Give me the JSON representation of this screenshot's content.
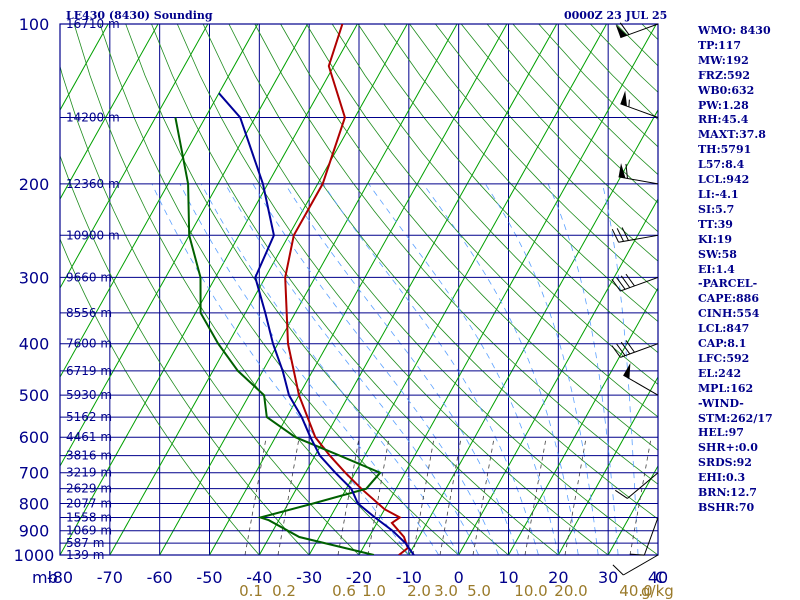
{
  "header": {
    "station": "LE430 (8430) Sounding",
    "time": "0000Z 23 JUL 25"
  },
  "indices": [
    "WMO: 8430",
    "TP:117",
    "MW:192",
    "FRZ:592",
    "WB0:632",
    "PW:1.28",
    "RH:45.4",
    "MAXT:37.8",
    "TH:5791",
    "L57:8.4",
    "LCL:942",
    "LI:-4.1",
    "SI:5.7",
    "TT:39",
    "KI:19",
    "SW:58",
    "EI:1.4",
    "-PARCEL-",
    "CAPE:886",
    "CINH:554",
    "LCL:847",
    "CAP:8.1",
    "LFC:592",
    "EL:242",
    "MPL:162",
    "-WIND-",
    "STM:262/17",
    "HEL:97",
    "SHR+:0.0",
    "SRDS:92",
    "EHI:0.3",
    "BRN:12.7",
    "BSHR:70"
  ],
  "chart_data": {
    "type": "skew-t",
    "y_unit_label": "mb",
    "x_unit_label": "C",
    "mixing_unit_label": "g/kg",
    "ylim": [
      100,
      1000
    ],
    "xlim": [
      -80,
      40
    ],
    "pressure_ticks": [
      100,
      200,
      300,
      400,
      500,
      600,
      700,
      800,
      900,
      1000
    ],
    "temperature_ticks": [
      -80,
      -70,
      -60,
      -50,
      -40,
      -30,
      -20,
      -10,
      0,
      10,
      20,
      30,
      40
    ],
    "mixing_ratio_ticks": [
      "0.1",
      "0.2",
      "0.6",
      "1.0",
      "2.0",
      "3.0",
      "5.0",
      "10.0",
      "20.0",
      "40.0"
    ],
    "height_labels": [
      {
        "p": 100,
        "label": "16710 m"
      },
      {
        "p": 150,
        "label": "14200 m"
      },
      {
        "p": 200,
        "label": "12360 m"
      },
      {
        "p": 250,
        "label": "10900 m"
      },
      {
        "p": 300,
        "label": "9660 m"
      },
      {
        "p": 350,
        "label": "8556 m"
      },
      {
        "p": 400,
        "label": "7600 m"
      },
      {
        "p": 450,
        "label": "6719 m"
      },
      {
        "p": 500,
        "label": "5930 m"
      },
      {
        "p": 550,
        "label": "5162 m"
      },
      {
        "p": 600,
        "label": "4461 m"
      },
      {
        "p": 650,
        "label": "3816 m"
      },
      {
        "p": 700,
        "label": "3219 m"
      },
      {
        "p": 750,
        "label": "2629 m"
      },
      {
        "p": 800,
        "label": "2077 m"
      },
      {
        "p": 850,
        "label": "1558 m"
      },
      {
        "p": 900,
        "label": "1069 m"
      },
      {
        "p": 950,
        "label": "587 m"
      },
      {
        "p": 1000,
        "label": "139 m"
      }
    ],
    "series": [
      {
        "key": "temperature",
        "color": "#b00000",
        "points": [
          [
            1000,
            -12
          ],
          [
            970,
            -11
          ],
          [
            925,
            -13
          ],
          [
            870,
            -17
          ],
          [
            850,
            -16
          ],
          [
            820,
            -20
          ],
          [
            750,
            -27
          ],
          [
            700,
            -32
          ],
          [
            650,
            -37
          ],
          [
            600,
            -42
          ],
          [
            500,
            -50
          ],
          [
            400,
            -58
          ],
          [
            300,
            -66
          ],
          [
            250,
            -69
          ],
          [
            200,
            -69
          ],
          [
            150,
            -72
          ],
          [
            120,
            -81
          ],
          [
            100,
            -83
          ]
        ]
      },
      {
        "key": "dewpoint",
        "color": "#006000",
        "points": [
          [
            1000,
            -17
          ],
          [
            925,
            -34
          ],
          [
            860,
            -42
          ],
          [
            850,
            -44
          ],
          [
            800,
            -35
          ],
          [
            750,
            -26
          ],
          [
            700,
            -25
          ],
          [
            650,
            -35
          ],
          [
            600,
            -46
          ],
          [
            550,
            -54
          ],
          [
            500,
            -57
          ],
          [
            450,
            -65
          ],
          [
            400,
            -72
          ],
          [
            350,
            -79
          ],
          [
            300,
            -83
          ],
          [
            250,
            -90
          ],
          [
            200,
            -96
          ],
          [
            150,
            -106
          ]
        ]
      },
      {
        "key": "parcel",
        "color": "#000099",
        "points": [
          [
            1000,
            -9
          ],
          [
            950,
            -12
          ],
          [
            900,
            -16
          ],
          [
            850,
            -21
          ],
          [
            800,
            -26
          ],
          [
            750,
            -29
          ],
          [
            700,
            -34
          ],
          [
            650,
            -39
          ],
          [
            600,
            -43
          ],
          [
            550,
            -47
          ],
          [
            500,
            -52
          ],
          [
            450,
            -56
          ],
          [
            400,
            -61
          ],
          [
            350,
            -66
          ],
          [
            300,
            -72
          ],
          [
            250,
            -73
          ],
          [
            200,
            -81
          ],
          [
            150,
            -93
          ],
          [
            135,
            -100
          ]
        ]
      }
    ],
    "wind_barbs": [
      {
        "p": 100,
        "dir": 250,
        "speed_kt": 60
      },
      {
        "p": 150,
        "dir": 290,
        "speed_kt": 55
      },
      {
        "p": 200,
        "dir": 280,
        "speed_kt": 60
      },
      {
        "p": 250,
        "dir": 260,
        "speed_kt": 30
      },
      {
        "p": 300,
        "dir": 250,
        "speed_kt": 40
      },
      {
        "p": 400,
        "dir": 250,
        "speed_kt": 40
      },
      {
        "p": 500,
        "dir": 300,
        "speed_kt": 50
      },
      {
        "p": 700,
        "dir": 230,
        "speed_kt": 10
      },
      {
        "p": 850,
        "dir": 200,
        "speed_kt": 10
      },
      {
        "p": 1000,
        "dir": 240,
        "speed_kt": 10
      }
    ],
    "colors": {
      "axis": "#00008b",
      "isobar": "#00008b",
      "isotherm": "#00008b",
      "skewed_isotherm": "#00a000",
      "dry_adiabat": "#1e8c1e",
      "moist_adiabat": "#5aa0ff",
      "mixing_ratio": "#404040",
      "mixing_label": "#9a7a2a",
      "barb": "#000000"
    }
  }
}
